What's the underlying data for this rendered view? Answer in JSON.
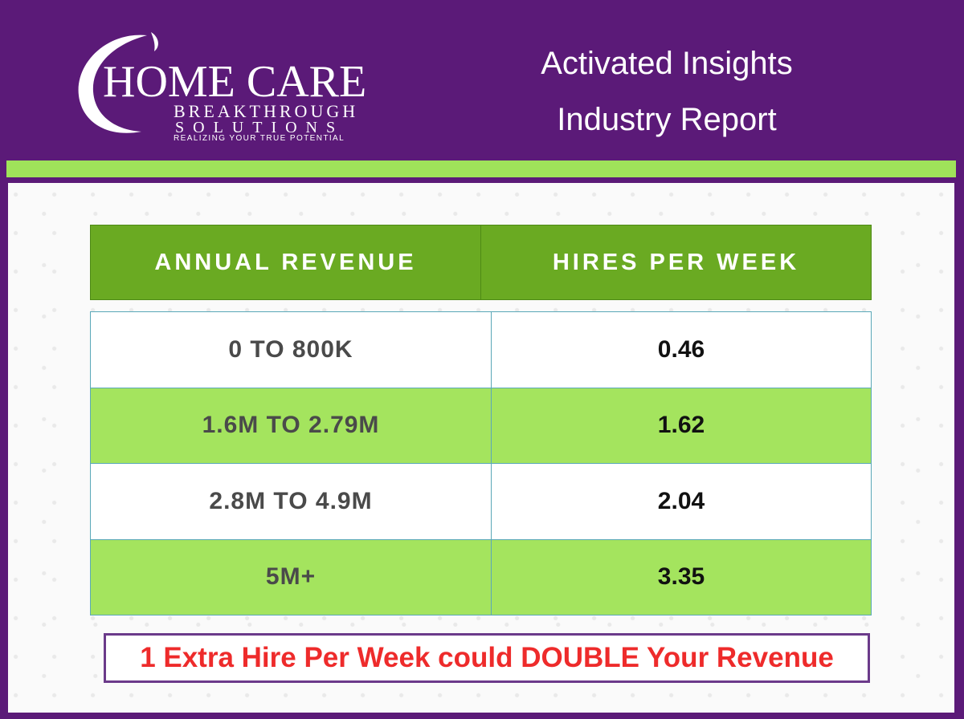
{
  "logo": {
    "main": "HOME CARE",
    "line2": "BREAKTHROUGH",
    "line3": "SOLUTIONS",
    "tagline": "REALIZING YOUR TRUE POTENTIAL"
  },
  "title": {
    "line1": "Activated Insights",
    "line2": "Industry Report"
  },
  "table": {
    "headers": [
      "ANNUAL REVENUE",
      "HIRES PER WEEK"
    ],
    "rows": [
      {
        "revenue": "0 TO 800K",
        "hires": "0.46"
      },
      {
        "revenue": "1.6M TO 2.79M",
        "hires": "1.62"
      },
      {
        "revenue": "2.8M TO 4.9M",
        "hires": "2.04"
      },
      {
        "revenue": "5M+",
        "hires": "3.35"
      }
    ]
  },
  "callout": "1 Extra Hire Per Week could DOUBLE Your Revenue",
  "colors": {
    "purple": "#5b1a78",
    "header_green": "#6aaa22",
    "row_green": "#a4e45e",
    "callout_red": "#ee2b2b"
  }
}
